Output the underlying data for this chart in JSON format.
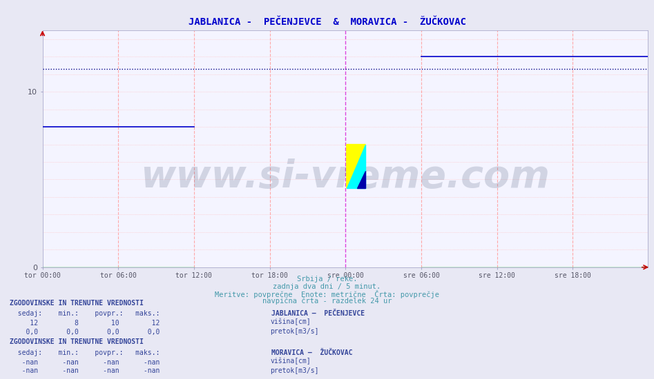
{
  "title": "JABLANICA -  PEČENJEVCE  &  MORAVICA -  ŽUČKOVAC",
  "title_color": "#0000cc",
  "title_fontsize": 10,
  "bg_color": "#e8e8f4",
  "plot_bg_color": "#f4f4ff",
  "grid_color_h": "#ffbbbb",
  "grid_color_v": "#ffbbbb",
  "grid_color_minor": "#ddddee",
  "x_tick_labels": [
    "tor 00:00",
    "tor 06:00",
    "tor 12:00",
    "tor 18:00",
    "sre 00:00",
    "sre 06:00",
    "sre 12:00",
    "sre 18:00"
  ],
  "x_tick_positions": [
    0,
    72,
    144,
    216,
    288,
    360,
    432,
    504
  ],
  "total_points": 576,
  "y_min": 0,
  "y_max": 13.5,
  "y_ticks": [
    0,
    10
  ],
  "jablanica_visina_color": "#0000cc",
  "jablanica_pretok_color": "#00bb00",
  "moravica_visina_color": "#00cccc",
  "moravica_pretok_color": "#cc00cc",
  "avg_line_color": "#000088",
  "avg_line_value": 11.3,
  "jablanica_seg1_val": 8,
  "jablanica_seg1_end": 145,
  "jablanica_seg2_val": 12,
  "jablanica_seg2_start": 360,
  "subtitle1": "Srbija / reke.",
  "subtitle2": "zadnja dva dni / 5 minut.",
  "subtitle3": "Meritve: povprečne  Enote: metrične  Črta: povprečje",
  "subtitle4": "navpična črta - razdelek 24 ur",
  "subtitle_color": "#4499aa",
  "subtitle_fontsize": 7.5,
  "watermark": "www.si-vreme.com",
  "watermark_color": "#334466",
  "watermark_alpha": 0.18,
  "watermark_fontsize": 40,
  "legend1_title": "JABLANICA –  PEČENJEVCE",
  "legend2_title": "MORAVICA –  ŽUČKOVAC",
  "stat_header": "ZGODOVINSKE IN TRENUTNE VREDNOSTI",
  "stat_col_labels": "  sedaj:    min.:    povpr.:   maks.:",
  "stat1_row1": "     12         8        10        12",
  "stat1_row2": "    0,0       0,0       0,0       0,0",
  "stat2_row1": "   -nan      -nan      -nan      -nan",
  "stat2_row2": "   -nan      -nan      -nan      -nan",
  "stat_color": "#334499",
  "midnight_line_color": "#cc44cc",
  "midnight_positions": [
    288
  ],
  "dashed_v_positions": [
    72,
    144,
    216,
    360,
    432,
    504
  ],
  "dashed_v_color": "#ffaaaa",
  "dashed_midnight_color": "#dd44dd",
  "arrow_color": "#cc0000",
  "logo_yellow": "#ffff00",
  "logo_cyan": "#00ffff",
  "logo_blue": "#0000aa"
}
